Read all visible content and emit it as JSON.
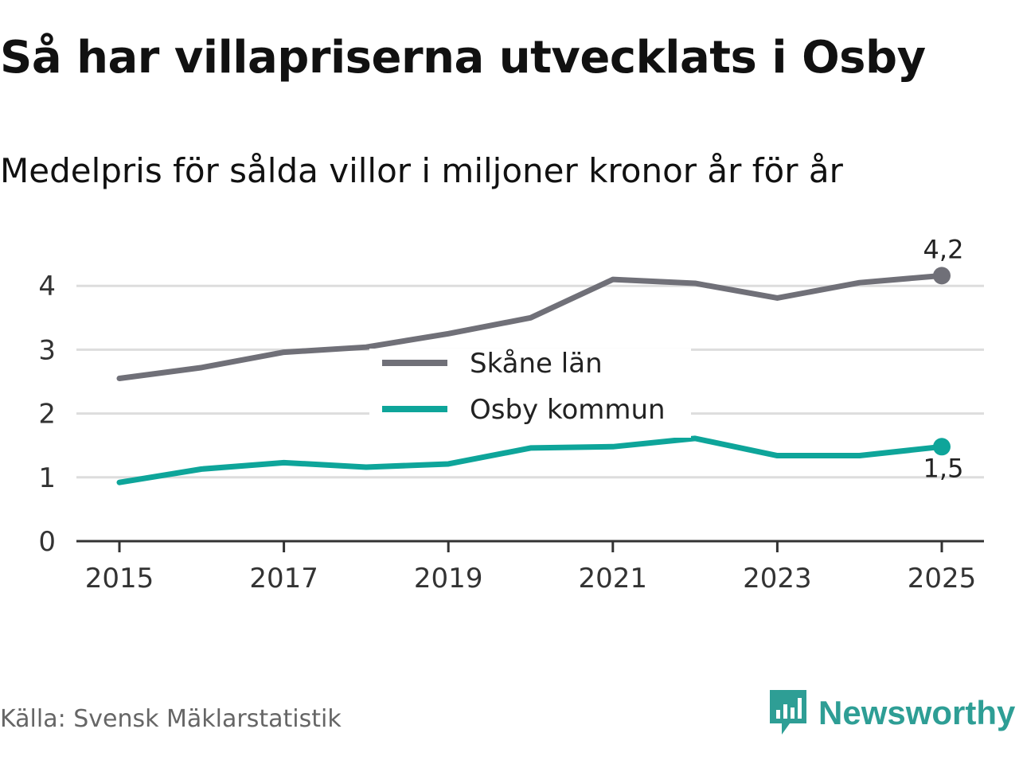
{
  "title": "Så har villapriserna utvecklats i Osby",
  "subtitle": "Medelpris för sålda villor i miljoner kronor år för år",
  "source": "Källa: Svensk Mäklarstatistik",
  "brand": "Newsworthy",
  "colors": {
    "skane": "#707078",
    "osby": "#0ea59a",
    "grid": "#dddddd",
    "axis": "#333333",
    "brand": "#2e9e95"
  },
  "chart_data": {
    "type": "line",
    "title": "Så har villapriserna utvecklats i Osby",
    "subtitle": "Medelpris för sålda villor i miljoner kronor år för år",
    "x": [
      2015,
      2016,
      2017,
      2018,
      2019,
      2020,
      2021,
      2022,
      2023,
      2024,
      2025
    ],
    "xticks": [
      "2015",
      "2017",
      "2019",
      "2021",
      "2023",
      "2025"
    ],
    "yticks": [
      "0",
      "1",
      "2",
      "3",
      "4"
    ],
    "ylim": [
      0,
      4.4
    ],
    "grid": true,
    "legend_position": "center",
    "series": [
      {
        "name": "Skåne län",
        "values": [
          2.55,
          2.72,
          2.96,
          3.04,
          3.25,
          3.5,
          4.1,
          4.04,
          3.81,
          4.05,
          4.16
        ],
        "end_label": "4,2",
        "color_key": "skane"
      },
      {
        "name": "Osby kommun",
        "values": [
          0.92,
          1.13,
          1.23,
          1.16,
          1.21,
          1.46,
          1.48,
          1.61,
          1.34,
          1.34,
          1.48
        ],
        "end_label": "1,5",
        "color_key": "osby"
      }
    ]
  }
}
